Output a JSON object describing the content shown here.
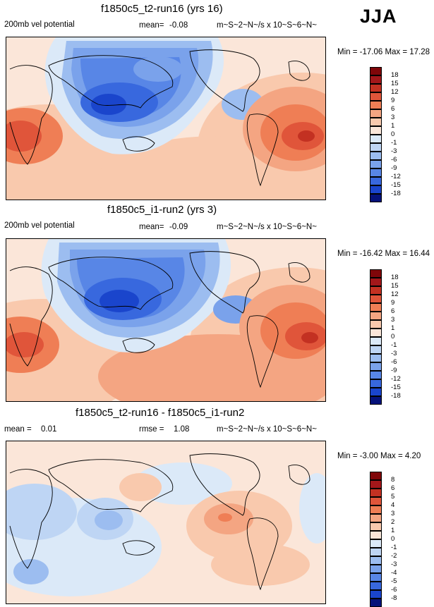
{
  "season": "JJA",
  "colors": {
    "pos": [
      "#fbe6d9",
      "#f9c9ad",
      "#f4a582",
      "#ef7e55",
      "#e0553a",
      "#c33122",
      "#a3171a",
      "#7f0609"
    ],
    "neg": [
      "#dbe9f8",
      "#bed5f4",
      "#9cbdf0",
      "#7aa2eb",
      "#5886e6",
      "#3868de",
      "#1a45cc",
      "#0c22a8",
      "#05127a"
    ]
  },
  "panels": [
    {
      "title": "f1850c5_t2-run16 (yrs 16)",
      "left_label": "200mb vel potential",
      "mean_label": "mean=",
      "mean_value": "-0.08",
      "units": "m~S~2~N~/s x 10~S~6~N~",
      "minmax": "Min = -17.06 Max =  17.28",
      "colorbar_labels": [
        "18",
        "15",
        "12",
        "9",
        "6",
        "3",
        "1",
        "0",
        "-1",
        "-3",
        "-6",
        "-9",
        "-12",
        "-15",
        "-18"
      ]
    },
    {
      "title": "f1850c5_i1-run2 (yrs 3)",
      "left_label": "200mb vel potential",
      "mean_label": "mean=",
      "mean_value": "-0.09",
      "units": "m~S~2~N~/s x 10~S~6~N~",
      "minmax": "Min = -16.42 Max =  16.44",
      "colorbar_labels": [
        "18",
        "15",
        "12",
        "9",
        "6",
        "3",
        "1",
        "0",
        "-1",
        "-3",
        "-6",
        "-9",
        "-12",
        "-15",
        "-18"
      ]
    },
    {
      "title": "f1850c5_t2-run16 - f1850c5_i1-run2",
      "mean_label": "mean =",
      "mean_value": "0.01",
      "rmse_label": "rmse =",
      "rmse_value": "1.08",
      "units": "m~S~2~N~/s x 10~S~6~N~",
      "minmax": "Min =  -3.00 Max =   4.20",
      "colorbar_labels": [
        "8",
        "6",
        "5",
        "4",
        "3",
        "2",
        "1",
        "0",
        "-1",
        "-2",
        "-3",
        "-4",
        "-5",
        "-6",
        "-8"
      ]
    }
  ],
  "chart_data": [
    {
      "type": "heatmap",
      "title": "f1850c5_t2-run16 (yrs 16)",
      "field": "200mb velocity potential",
      "season": "JJA",
      "mean": -0.08,
      "min": -17.06,
      "max": 17.28,
      "contour_levels": [
        -18,
        -15,
        -12,
        -9,
        -6,
        -3,
        -1,
        0,
        1,
        3,
        6,
        9,
        12,
        15,
        18
      ],
      "features": [
        {
          "region": "western Pacific / Maritime Continent",
          "approx_value": -15
        },
        {
          "region": "North Africa / Arabia",
          "approx_value": -6
        },
        {
          "region": "South America / South Atlantic",
          "approx_value": 15
        },
        {
          "region": "Southern Africa",
          "approx_value": 12
        }
      ]
    },
    {
      "type": "heatmap",
      "title": "f1850c5_i1-run2 (yrs 3)",
      "field": "200mb velocity potential",
      "season": "JJA",
      "mean": -0.09,
      "min": -16.42,
      "max": 16.44,
      "contour_levels": [
        -18,
        -15,
        -12,
        -9,
        -6,
        -3,
        -1,
        0,
        1,
        3,
        6,
        9,
        12,
        15,
        18
      ],
      "features": [
        {
          "region": "western Pacific / Maritime Continent",
          "approx_value": -15
        },
        {
          "region": "North Africa / Arabia",
          "approx_value": -6
        },
        {
          "region": "South America / South Atlantic",
          "approx_value": 15
        },
        {
          "region": "Southern Africa",
          "approx_value": 12
        }
      ]
    },
    {
      "type": "heatmap",
      "title": "f1850c5_t2-run16 - f1850c5_i1-run2",
      "field": "difference",
      "season": "JJA",
      "mean": 0.01,
      "rmse": 1.08,
      "min": -3.0,
      "max": 4.2,
      "contour_levels": [
        -8,
        -6,
        -5,
        -4,
        -3,
        -2,
        -1,
        0,
        1,
        2,
        3,
        4,
        5,
        6,
        8
      ],
      "features": [
        {
          "region": "Central America / East Pacific",
          "approx_value": 3
        },
        {
          "region": "North Pacific near Japan",
          "approx_value": 2
        },
        {
          "region": "Indian Ocean / Australia",
          "approx_value": -2
        },
        {
          "region": "Southern Africa",
          "approx_value": -2
        }
      ]
    }
  ]
}
